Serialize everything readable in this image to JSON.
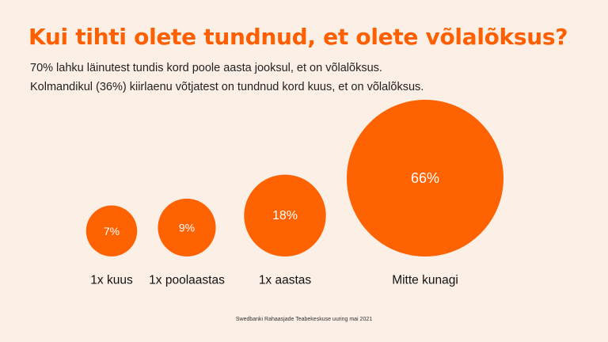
{
  "title": "Kui tihti olete tundnud, et olete võlalõksus?",
  "subtitle_lines": [
    "70% lahku läinutest tundis kord poole aasta jooksul, et on võlalõksus.",
    "Kolmandikul (36%) kiirlaenu võtjatest on tundnud kord kuus, et on võlalõksus."
  ],
  "source": "Swedbanki Rahaasjade Teabekeskuse uuring mai 2021",
  "colors": {
    "bubble": "#ff6200",
    "title": "#ff5f00",
    "background": "#fbefe6"
  },
  "chart_data": {
    "type": "bubble",
    "categories": [
      "1x kuus",
      "1x poolaastas",
      "1x aastas",
      "Mitte kunagi"
    ],
    "values": [
      7,
      9,
      18,
      66
    ],
    "value_labels": [
      "7%",
      "9%",
      "18%",
      "66%"
    ],
    "unit": "%"
  }
}
